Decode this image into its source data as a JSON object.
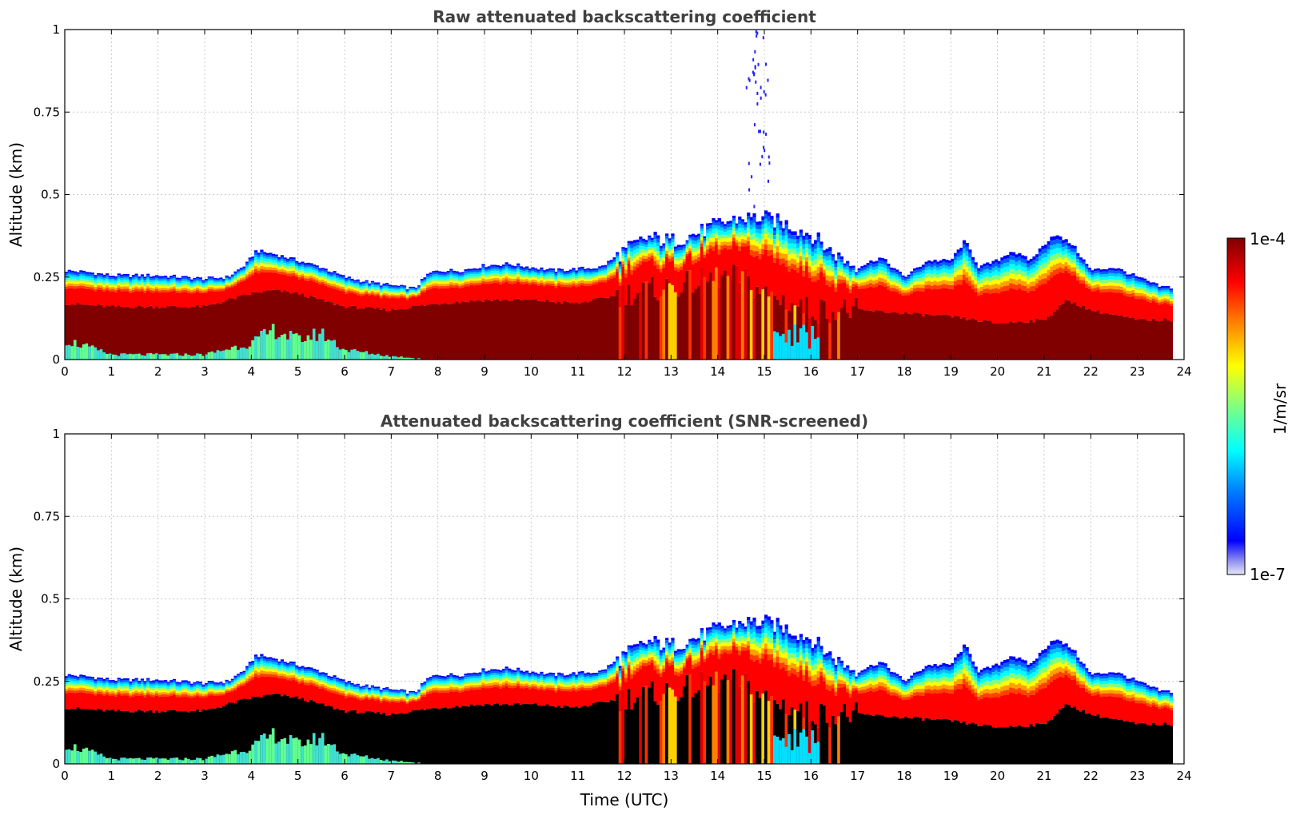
{
  "chart_data": [
    {
      "type": "heatmap",
      "title": "Raw attenuated backscattering coefficient",
      "xlabel": "",
      "ylabel": "Altitude (km)",
      "xlim": [
        0,
        24
      ],
      "ylim": [
        0,
        1
      ],
      "xticks": [
        "0",
        "1",
        "2",
        "3",
        "4",
        "5",
        "6",
        "7",
        "8",
        "9",
        "10",
        "11",
        "12",
        "13",
        "14",
        "15",
        "16",
        "17",
        "18",
        "19",
        "20",
        "21",
        "22",
        "23",
        "24"
      ],
      "yticks": [
        "0",
        "0.25",
        "0.5",
        "0.75",
        "1"
      ],
      "grid": true,
      "data_end_hour": 23.75,
      "layer_top_km": [
        [
          0,
          0.27
        ],
        [
          0.5,
          0.265
        ],
        [
          1,
          0.255
        ],
        [
          1.5,
          0.255
        ],
        [
          2,
          0.255
        ],
        [
          2.5,
          0.25
        ],
        [
          3,
          0.245
        ],
        [
          3.5,
          0.25
        ],
        [
          3.9,
          0.29
        ],
        [
          4.1,
          0.33
        ],
        [
          4.5,
          0.32
        ],
        [
          5,
          0.3
        ],
        [
          5.5,
          0.28
        ],
        [
          6,
          0.25
        ],
        [
          6.5,
          0.235
        ],
        [
          7,
          0.225
        ],
        [
          7.5,
          0.215
        ],
        [
          7.8,
          0.26
        ],
        [
          8,
          0.27
        ],
        [
          8.5,
          0.27
        ],
        [
          9,
          0.285
        ],
        [
          9.5,
          0.29
        ],
        [
          10,
          0.28
        ],
        [
          10.5,
          0.27
        ],
        [
          11,
          0.275
        ],
        [
          11.5,
          0.28
        ],
        [
          12,
          0.33
        ],
        [
          12.5,
          0.37
        ],
        [
          13,
          0.36
        ],
        [
          13.5,
          0.38
        ],
        [
          14,
          0.41
        ],
        [
          14.5,
          0.43
        ],
        [
          15,
          0.43
        ],
        [
          15.5,
          0.41
        ],
        [
          16,
          0.38
        ],
        [
          16.5,
          0.32
        ],
        [
          17,
          0.28
        ],
        [
          17.5,
          0.31
        ],
        [
          18,
          0.25
        ],
        [
          18.5,
          0.3
        ],
        [
          19,
          0.3
        ],
        [
          19.3,
          0.36
        ],
        [
          19.6,
          0.28
        ],
        [
          20,
          0.3
        ],
        [
          20.3,
          0.33
        ],
        [
          20.7,
          0.3
        ],
        [
          21.2,
          0.38
        ],
        [
          21.6,
          0.35
        ],
        [
          22,
          0.27
        ],
        [
          22.5,
          0.28
        ],
        [
          23,
          0.25
        ],
        [
          23.5,
          0.22
        ],
        [
          23.75,
          0.22
        ]
      ],
      "saturated_top_km": [
        [
          0,
          0.17
        ],
        [
          1,
          0.16
        ],
        [
          2,
          0.16
        ],
        [
          3,
          0.16
        ],
        [
          4,
          0.2
        ],
        [
          4.5,
          0.21
        ],
        [
          5,
          0.2
        ],
        [
          5.5,
          0.18
        ],
        [
          6,
          0.16
        ],
        [
          7,
          0.15
        ],
        [
          8,
          0.17
        ],
        [
          9,
          0.18
        ],
        [
          10,
          0.18
        ],
        [
          11,
          0.17
        ],
        [
          12,
          0.2
        ],
        [
          13,
          0.22
        ],
        [
          14,
          0.25
        ],
        [
          14.5,
          0.25
        ],
        [
          15,
          0.2
        ],
        [
          16,
          0.15
        ],
        [
          17,
          0.15
        ],
        [
          18,
          0.14
        ],
        [
          19,
          0.13
        ],
        [
          20,
          0.11
        ],
        [
          21,
          0.12
        ],
        [
          21.5,
          0.18
        ],
        [
          22,
          0.15
        ],
        [
          23,
          0.12
        ],
        [
          23.75,
          0.12
        ]
      ],
      "near_surface_low_km": [
        [
          0,
          0.06
        ],
        [
          1,
          0.015
        ],
        [
          3,
          0.015
        ],
        [
          4,
          0.05
        ],
        [
          4.5,
          0.09
        ],
        [
          5,
          0.06
        ],
        [
          5.5,
          0.08
        ],
        [
          6,
          0.03
        ],
        [
          7,
          0.01
        ],
        [
          8,
          0.0
        ]
      ],
      "colorbar": {
        "label": "1/m/sr",
        "min": "1e-7",
        "max": "1e-4"
      }
    },
    {
      "type": "heatmap",
      "title": "Attenuated backscattering coefficient (SNR-screened)",
      "xlabel": "Time (UTC)",
      "ylabel": "Altitude (km)",
      "xlim": [
        0,
        24
      ],
      "ylim": [
        0,
        1
      ],
      "xticks": [
        "0",
        "1",
        "2",
        "3",
        "4",
        "5",
        "6",
        "7",
        "8",
        "9",
        "10",
        "11",
        "12",
        "13",
        "14",
        "15",
        "16",
        "17",
        "18",
        "19",
        "20",
        "21",
        "22",
        "23",
        "24"
      ],
      "yticks": [
        "0",
        "0.25",
        "0.5",
        "0.75",
        "1"
      ],
      "grid": true,
      "screened_fill": "#000000",
      "data_end_hour": 23.75
    }
  ]
}
